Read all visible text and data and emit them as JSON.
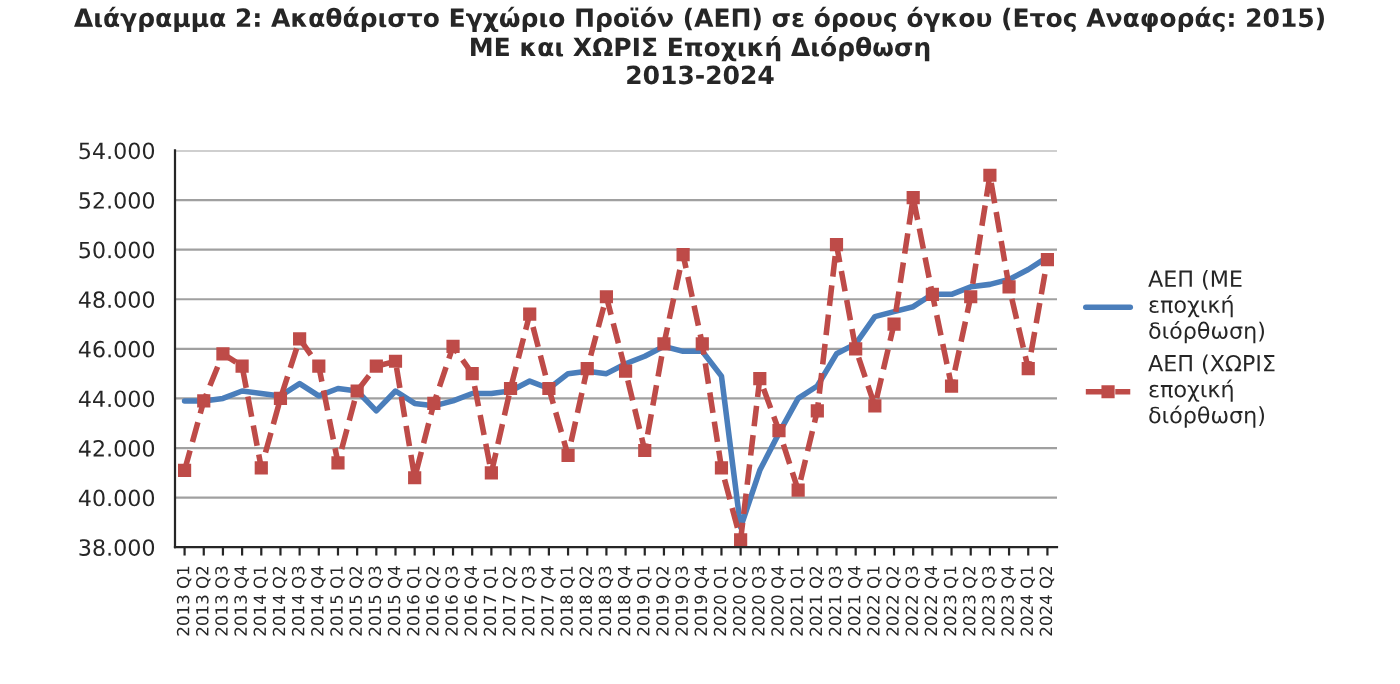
{
  "chart_data": {
    "type": "line",
    "title": "Διάγραμμα 2: Ακαθάριστο Εγχώριο Προϊόν (ΑΕΠ) σε όρους όγκου (Ετος Αναφοράς: 2015)\nΜΕ και ΧΩΡΙΣ Εποχική Διόρθωση\n2013-2024",
    "categories": [
      "2013 Q1",
      "2013 Q2",
      "2013 Q3",
      "2013 Q4",
      "2014 Q1",
      "2014 Q2",
      "2014 Q3",
      "2014 Q4",
      "2015 Q1",
      "2015 Q2",
      "2015 Q3",
      "2015 Q4",
      "2016 Q1",
      "2016 Q2",
      "2016 Q3",
      "2016 Q4",
      "2017 Q1",
      "2017 Q2",
      "2017 Q3",
      "2017 Q4",
      "2018 Q1",
      "2018 Q2",
      "2018 Q3",
      "2018 Q4",
      "2019 Q1",
      "2019 Q2",
      "2019 Q3",
      "2019 Q4",
      "2020 Q1",
      "2020 Q2",
      "2020 Q3",
      "2020 Q4",
      "2021 Q1",
      "2021 Q2",
      "2021 Q3",
      "2021 Q4",
      "2022 Q1",
      "2022 Q2",
      "2022 Q3",
      "2022 Q4",
      "2023 Q1",
      "2023 Q2",
      "2023 Q3",
      "2023 Q4",
      "2024 Q1",
      "2024 Q2"
    ],
    "series": [
      {
        "name": "ΑΕΠ (ΜΕ\nεποχική\nδιόρθωση)",
        "color": "#4a7ebb",
        "marker": "none",
        "line_style": "solid",
        "values": [
          43900,
          43900,
          44000,
          44300,
          44200,
          44100,
          44600,
          44100,
          44400,
          44300,
          43500,
          44300,
          43800,
          43700,
          43900,
          44200,
          44200,
          44300,
          44700,
          44400,
          45000,
          45100,
          45000,
          45400,
          45700,
          46100,
          45900,
          45900,
          44900,
          38800,
          41100,
          42600,
          44000,
          44500,
          45800,
          46200,
          47300,
          47500,
          47700,
          48200,
          48200,
          48500,
          48600,
          48800,
          49200,
          49700
        ]
      },
      {
        "name": "ΑΕΠ (ΧΩΡΙΣ\nεποχική\nδιόρθωση)",
        "color": "#be4b48",
        "marker": "square",
        "line_style": "dashed",
        "values": [
          41100,
          43900,
          45800,
          45300,
          41200,
          44000,
          46400,
          45300,
          41400,
          44300,
          45300,
          45500,
          40800,
          43800,
          46100,
          45000,
          41000,
          44400,
          47400,
          44400,
          41700,
          45200,
          48100,
          45100,
          41900,
          46200,
          49800,
          46200,
          41200,
          38300,
          44800,
          42700,
          40300,
          43500,
          50200,
          46000,
          43700,
          47000,
          52100,
          48200,
          44500,
          48100,
          53000,
          48500,
          45200,
          49600
        ]
      }
    ],
    "ylim": [
      38000,
      54000
    ],
    "yticks": [
      {
        "value": 38000,
        "label": "38.000"
      },
      {
        "value": 40000,
        "label": "40.000"
      },
      {
        "value": 42000,
        "label": "42.000"
      },
      {
        "value": 44000,
        "label": "44.000"
      },
      {
        "value": 46000,
        "label": "46.000"
      },
      {
        "value": 48000,
        "label": "48.000"
      },
      {
        "value": 50000,
        "label": "50.000"
      },
      {
        "value": 52000,
        "label": "52.000"
      },
      {
        "value": 54000,
        "label": "54.000"
      }
    ],
    "grid": "y",
    "legend": "right"
  }
}
